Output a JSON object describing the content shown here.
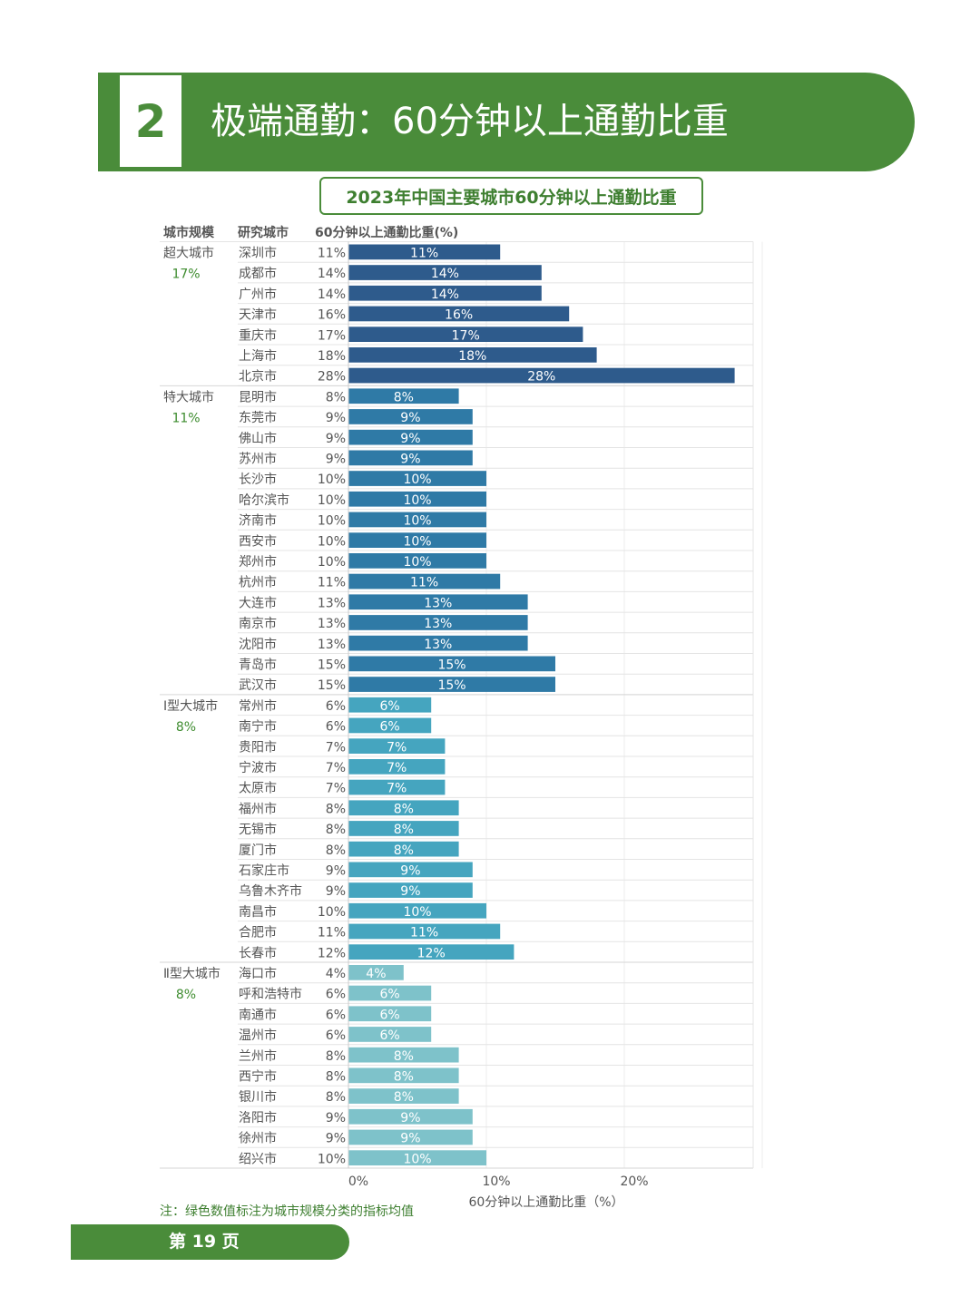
{
  "section": {
    "number": "2",
    "title": "极端通勤：60分钟以上通勤比重"
  },
  "chart_data": {
    "type": "bar",
    "orientation": "horizontal",
    "title": "2023年中国主要城市60分钟以上通勤比重",
    "columns": {
      "group": "城市规模",
      "city": "研究城市",
      "value": "60分钟以上通勤比重(%)"
    },
    "xlabel": "60分钟以上通勤比重（%）",
    "xlim": [
      0,
      30
    ],
    "xticks": [
      "0%",
      "10%",
      "20%"
    ],
    "xtick_values": [
      0,
      10,
      20
    ],
    "grid": true,
    "groups": [
      {
        "name": "超大城市",
        "mean": "17%",
        "color": "#2e5b8c",
        "cities": [
          "深圳市",
          "成都市",
          "广州市",
          "天津市",
          "重庆市",
          "上海市",
          "北京市"
        ],
        "values": [
          11,
          14,
          14,
          16,
          17,
          18,
          28
        ]
      },
      {
        "name": "特大城市",
        "mean": "11%",
        "color": "#2f7aa6",
        "cities": [
          "昆明市",
          "东莞市",
          "佛山市",
          "苏州市",
          "长沙市",
          "哈尔滨市",
          "济南市",
          "西安市",
          "郑州市",
          "杭州市",
          "大连市",
          "南京市",
          "沈阳市",
          "青岛市",
          "武汉市"
        ],
        "values": [
          8,
          9,
          9,
          9,
          10,
          10,
          10,
          10,
          10,
          11,
          13,
          13,
          13,
          15,
          15
        ]
      },
      {
        "name": "Ⅰ型大城市",
        "mean": "8%",
        "color": "#45a5bf",
        "cities": [
          "常州市",
          "南宁市",
          "贵阳市",
          "宁波市",
          "太原市",
          "福州市",
          "无锡市",
          "厦门市",
          "石家庄市",
          "乌鲁木齐市",
          "南昌市",
          "合肥市",
          "长春市"
        ],
        "values": [
          6,
          6,
          7,
          7,
          7,
          8,
          8,
          8,
          9,
          9,
          10,
          11,
          12
        ]
      },
      {
        "name": "Ⅱ型大城市",
        "mean": "8%",
        "color": "#7ec2ca",
        "cities": [
          "海口市",
          "呼和浩特市",
          "南通市",
          "温州市",
          "兰州市",
          "西宁市",
          "银川市",
          "洛阳市",
          "徐州市",
          "绍兴市"
        ],
        "values": [
          4,
          6,
          6,
          6,
          8,
          8,
          8,
          9,
          9,
          10
        ]
      }
    ]
  },
  "note": "注：绿色数值标注为城市规模分类的指标均值",
  "page": "第 19 页"
}
